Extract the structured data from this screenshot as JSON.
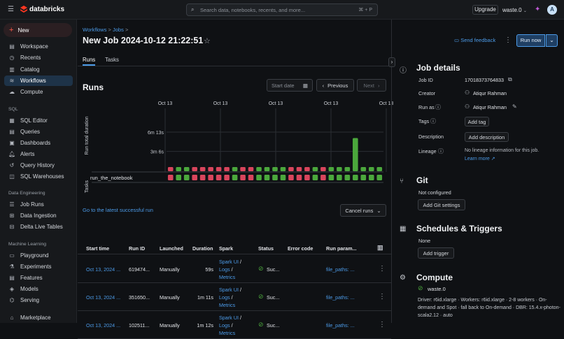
{
  "topbar": {
    "brand": "databricks",
    "search_placeholder": "Search data, notebooks, recents, and more...",
    "search_shortcut": "⌘ + P",
    "upgrade_label": "Upgrade",
    "workspace": "waste.0",
    "avatar": "A"
  },
  "sidebar": {
    "new_label": "New",
    "items": [
      "Workspace",
      "Recents",
      "Catalog",
      "Workflows",
      "Compute"
    ],
    "sql_header": "SQL",
    "sql_items": [
      "SQL Editor",
      "Queries",
      "Dashboards",
      "Alerts",
      "Query History",
      "SQL Warehouses"
    ],
    "de_header": "Data Engineering",
    "de_items": [
      "Job Runs",
      "Data Ingestion",
      "Delta Live Tables"
    ],
    "ml_header": "Machine Learning",
    "ml_items": [
      "Playground",
      "Experiments",
      "Features",
      "Models",
      "Serving"
    ],
    "bottom_items": [
      "Marketplace"
    ]
  },
  "main": {
    "breadcrumb": [
      "Workflows",
      "Jobs"
    ],
    "title": "New Job 2024-10-12 21:22:51",
    "send_feedback": "Send feedback",
    "run_now": "Run now",
    "tabs": [
      "Runs",
      "Tasks"
    ],
    "runs_heading": "Runs",
    "start_date_placeholder": "Start date",
    "previous_label": "Previous",
    "next_label": "Next",
    "latest_link": "Go to the latest successful run",
    "cancel_runs": "Cancel runs",
    "columns": [
      "Start time",
      "Run ID",
      "Launched",
      "Duration",
      "Spark",
      "Status",
      "Error code",
      "Run param..."
    ],
    "rows": [
      {
        "start": "Oct 13, 2024 ...",
        "run_id": "619474...",
        "launched": "Manually",
        "duration": "59s",
        "spark": [
          "Spark UI",
          "Logs",
          "Metrics"
        ],
        "status": "Suc...",
        "error": "",
        "params": "file_paths: ..."
      },
      {
        "start": "Oct 13, 2024 ...",
        "run_id": "351650...",
        "launched": "Manually",
        "duration": "1m 11s",
        "spark": [
          "Spark UI",
          "Logs",
          "Metrics"
        ],
        "status": "Suc...",
        "error": "",
        "params": "file_paths: ..."
      },
      {
        "start": "Oct 13, 2024 ...",
        "run_id": "102511...",
        "launched": "Manually",
        "duration": "1m 12s",
        "spark": [
          "Spark UI",
          "Logs",
          "Metrics"
        ],
        "status": "Suc...",
        "error": "",
        "params": "file_paths: ..."
      }
    ]
  },
  "chart_data": {
    "type": "bar",
    "ylabel": "Run total duration",
    "task_axis_label": "Tasks",
    "task_name": "run_the_notebook",
    "x_tick_labels": [
      "Oct 13",
      "Oct 13",
      "Oct 13",
      "Oct 13",
      "Oct 13"
    ],
    "y_tick_labels": [
      "6m 13s",
      "3m 6s"
    ],
    "ylim_seconds": [
      0,
      373
    ],
    "values_seconds": [
      10,
      10,
      10,
      10,
      10,
      10,
      10,
      10,
      10,
      10,
      10,
      10,
      10,
      10,
      10,
      10,
      10,
      10,
      10,
      10,
      10,
      15,
      15,
      322,
      15,
      15,
      15
    ],
    "statuses": [
      "fail",
      "success",
      "success",
      "fail",
      "fail",
      "fail",
      "fail",
      "fail",
      "success",
      "fail",
      "fail",
      "success",
      "success",
      "success",
      "success",
      "fail",
      "fail",
      "fail",
      "success",
      "fail",
      "success",
      "success",
      "success",
      "success",
      "success",
      "success",
      "success"
    ],
    "colors": {
      "success": "#4ba83c",
      "fail": "#d9455c"
    }
  },
  "details": {
    "heading": "Job details",
    "job_id_label": "Job ID",
    "job_id": "17018373764833",
    "creator_label": "Creator",
    "creator": "Atiqur Rahman",
    "run_as_label": "Run as",
    "run_as": "Atiqur Rahman",
    "tags_label": "Tags",
    "add_tag": "Add tag",
    "description_label": "Description",
    "add_description": "Add description",
    "lineage_label": "Lineage",
    "lineage_text": "No lineage information for this job.",
    "learn_more": "Learn more",
    "git_heading": "Git",
    "git_status": "Not configured",
    "add_git": "Add Git settings",
    "sched_heading": "Schedules & Triggers",
    "sched_value": "None",
    "add_trigger": "Add trigger",
    "compute_heading": "Compute",
    "compute_name": "waste.0",
    "compute_desc": "Driver: r6id.xlarge · Workers: r6id.xlarge · 2-8 workers · On-demand and Spot · fall back to On-demand · DBR: 15.4.x-photon-scala2.12 · auto"
  }
}
